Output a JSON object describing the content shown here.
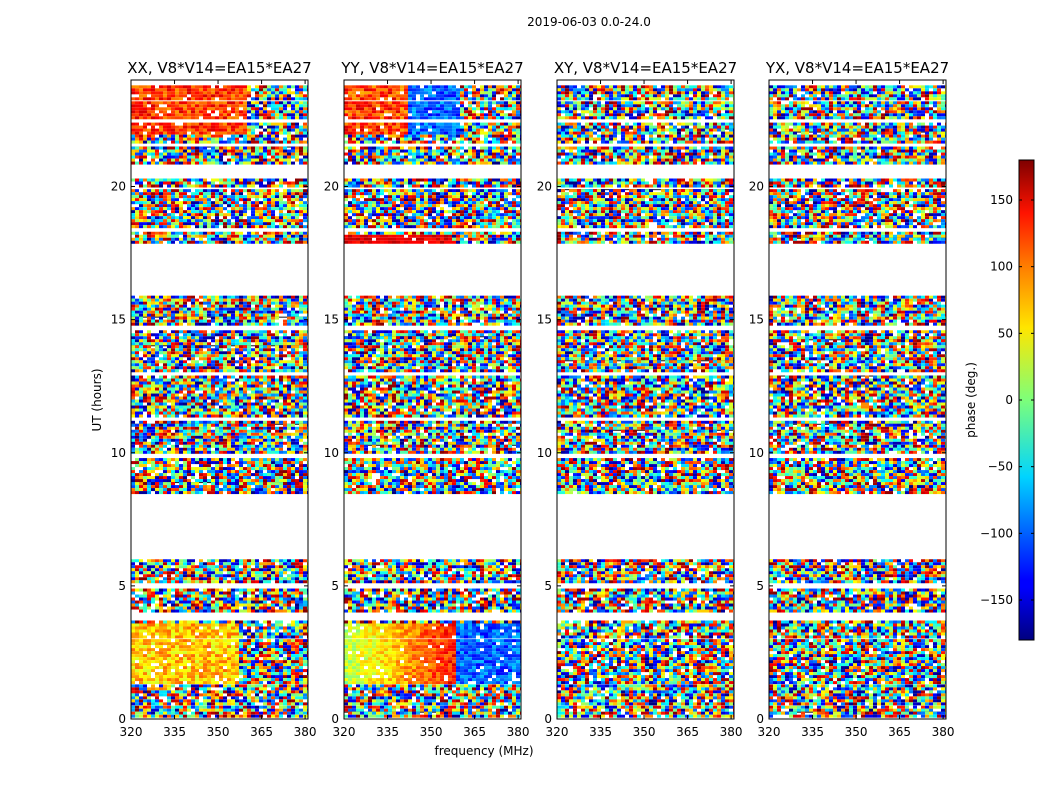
{
  "figure": {
    "suptitle": "2019-06-03 0.0-24.0",
    "xlabel": "frequency (MHz)",
    "ylabel": "UT (hours)"
  },
  "chart_data": {
    "type": "heatmap",
    "x_range": [
      320,
      381
    ],
    "y_range": [
      0,
      24
    ],
    "xticks": [
      320,
      335,
      350,
      365,
      380
    ],
    "yticks": [
      0,
      5,
      10,
      15,
      20
    ],
    "panels": [
      {
        "title": "XX, V8*V14=EA15*EA27",
        "pattern": "xx"
      },
      {
        "title": "YY, V8*V14=EA15*EA27",
        "pattern": "yy"
      },
      {
        "title": "XY, V8*V14=EA15*EA27",
        "pattern": "noise"
      },
      {
        "title": "YX, V8*V14=EA15*EA27",
        "pattern": "noise"
      }
    ],
    "data_bands_hours": [
      [
        0.1,
        0.5
      ],
      [
        0.6,
        1.3
      ],
      [
        1.4,
        2.1
      ],
      [
        2.2,
        3.0
      ],
      [
        3.1,
        3.7
      ],
      [
        4.1,
        4.9
      ],
      [
        5.1,
        6.0
      ],
      [
        8.5,
        9.8
      ],
      [
        10.0,
        11.2
      ],
      [
        11.4,
        12.9
      ],
      [
        13.1,
        14.6
      ],
      [
        14.8,
        15.9
      ],
      [
        17.9,
        18.3
      ],
      [
        18.5,
        19.9
      ],
      [
        20.0,
        20.3
      ],
      [
        20.9,
        21.5
      ],
      [
        21.7,
        22.4
      ],
      [
        22.6,
        23.2
      ],
      [
        23.3,
        23.8
      ]
    ],
    "colorbar": {
      "label": "phase (deg.)",
      "colormap": "jet",
      "range": [
        -180,
        180
      ],
      "ticks": [
        -150,
        -100,
        -50,
        0,
        50,
        100,
        150
      ],
      "tick_labels": [
        "−150",
        "−100",
        "−50",
        "0",
        "50",
        "100",
        "150"
      ]
    }
  }
}
